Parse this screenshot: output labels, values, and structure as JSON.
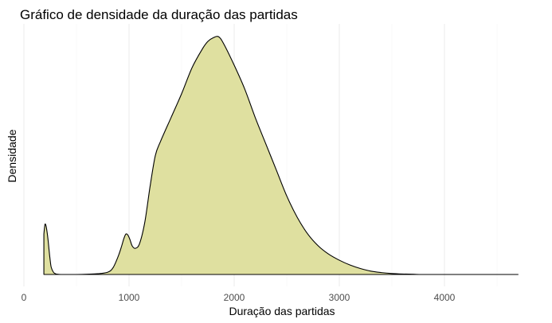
{
  "chart_data": {
    "type": "area",
    "title": "Gráfico de densidade da duração das partidas",
    "xlabel": "Duração das partidas",
    "ylabel": "Densidade",
    "xlim": [
      0,
      4750
    ],
    "ylim": [
      0,
      1
    ],
    "x_ticks": [
      0,
      1000,
      2000,
      3000,
      4000
    ],
    "x_tick_labels": [
      "0",
      "1000",
      "2000",
      "3000",
      "4000"
    ],
    "y_tick_labels": [],
    "grid": "vertical",
    "legend": "none",
    "fill_color": "#dfe0a0",
    "line_color": "#000000",
    "series": [
      {
        "x": [
          190,
          200,
          210,
          220,
          230,
          240,
          250,
          260,
          280,
          300,
          320,
          350,
          400,
          500,
          600,
          700,
          800,
          850,
          900,
          930,
          950,
          970,
          990,
          1010,
          1030,
          1060,
          1100,
          1150,
          1200,
          1250,
          1300,
          1400,
          1500,
          1600,
          1700,
          1750,
          1800,
          1850,
          1900,
          2000,
          2100,
          2200,
          2300,
          2400,
          2500,
          2600,
          2700,
          2800,
          2900,
          3000,
          3100,
          3200,
          3300,
          3400,
          3500,
          3600,
          3700,
          3760,
          4000,
          4300,
          4700
        ],
        "y": [
          0.17,
          0.21,
          0.205,
          0.18,
          0.145,
          0.1,
          0.06,
          0.03,
          0.01,
          0.003,
          0.001,
          0.0,
          0.0,
          0.0,
          0.001,
          0.003,
          0.01,
          0.03,
          0.08,
          0.12,
          0.15,
          0.17,
          0.165,
          0.145,
          0.12,
          0.11,
          0.13,
          0.22,
          0.37,
          0.5,
          0.56,
          0.66,
          0.76,
          0.87,
          0.95,
          0.98,
          0.995,
          1.0,
          0.97,
          0.88,
          0.78,
          0.66,
          0.55,
          0.44,
          0.33,
          0.24,
          0.17,
          0.12,
          0.085,
          0.06,
          0.04,
          0.025,
          0.014,
          0.008,
          0.004,
          0.002,
          0.001,
          0.0,
          0.0,
          0.0,
          0.0
        ]
      }
    ]
  }
}
